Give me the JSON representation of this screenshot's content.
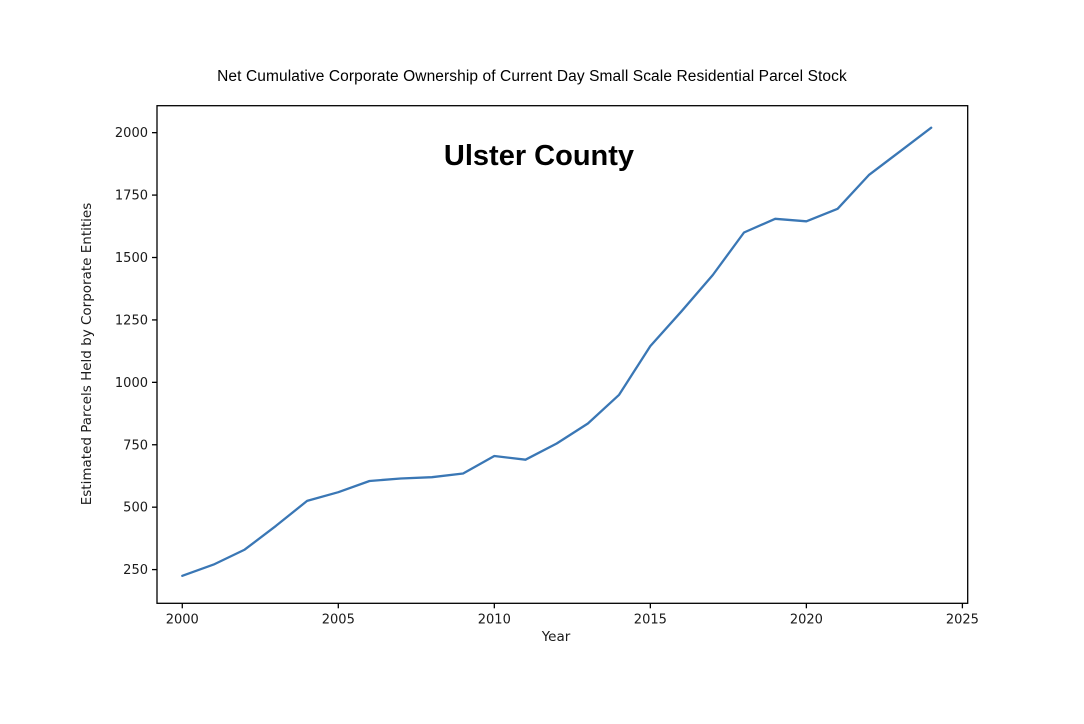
{
  "chart_data": {
    "type": "line",
    "title": "Net Cumulative Corporate Ownership of Current Day Small Scale Residential Parcel Stock",
    "annotation": "Ulster County",
    "xlabel": "Year",
    "ylabel": "Estimated Parcels Held by Corporate Entities",
    "x": [
      2000,
      2001,
      2002,
      2003,
      2004,
      2005,
      2006,
      2007,
      2008,
      2009,
      2010,
      2011,
      2012,
      2013,
      2014,
      2015,
      2016,
      2017,
      2018,
      2019,
      2020,
      2021,
      2022,
      2023,
      2024
    ],
    "values": [
      225,
      270,
      330,
      425,
      525,
      560,
      605,
      615,
      620,
      635,
      705,
      690,
      755,
      835,
      950,
      1145,
      1285,
      1430,
      1600,
      1655,
      1645,
      1695,
      1830,
      1925,
      2020
    ],
    "series_name": "Estimated parcels held by corporate entities",
    "xticks": [
      2000,
      2005,
      2010,
      2015,
      2020,
      2025
    ],
    "yticks": [
      250,
      500,
      750,
      1000,
      1250,
      1500,
      1750,
      2000
    ],
    "xlim": [
      1999.19,
      2025.17
    ],
    "ylim": [
      115,
      2108
    ],
    "line_color": "#3a77b5",
    "axis_color": "#000000",
    "tick_label_color": "#1a1a1a",
    "grid": false,
    "legend": null
  }
}
